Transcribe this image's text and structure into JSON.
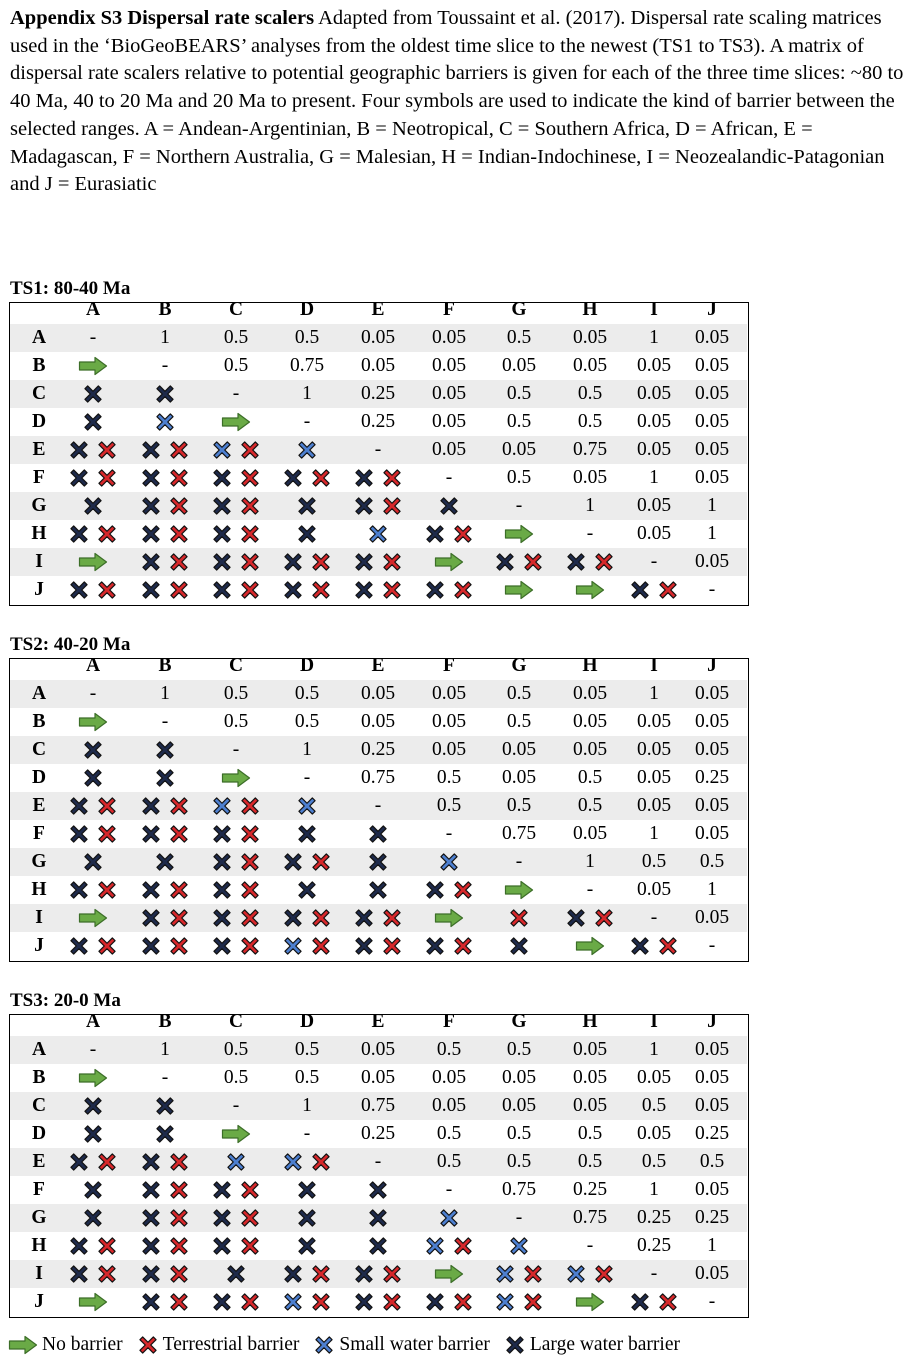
{
  "intro": {
    "bold": "Appendix S3 Dispersal rate scalers",
    "text": " Adapted from Toussaint et al. (2017). Dispersal rate scaling matrices used in the ‘BioGeoBEARS’ analyses from the oldest time slice to the newest (TS1 to TS3). A matrix of dispersal rate scalers relative to potential geographic barriers is given for each of the three time slices: ~80 to 40 Ma, 40 to 20 Ma and 20 Ma to present. Four symbols are used to indicate the kind of barrier between the selected ranges. A = Andean-Argentinian, B = Neotropical, C = Southern Africa, D = African, E = Madagascan, F = Northern Australia, G = Malesian, H = Indian-Indochinese, I = Neozealandic-Patagonian and J = Eurasiatic"
  },
  "labels": [
    "A",
    "B",
    "C",
    "D",
    "E",
    "F",
    "G",
    "H",
    "I",
    "J"
  ],
  "colors": {
    "no_barrier": "#6aaa46",
    "terrestrial": "#d6282b",
    "small_water": "#4d7fcf",
    "large_water": "#1e2a4a"
  },
  "matrices": [
    {
      "title": "TS1: 80-40 Ma",
      "rows": [
        [
          "-",
          "1",
          "0.5",
          "0.5",
          "0.05",
          "0.05",
          "0.5",
          "0.05",
          "1",
          "0.05"
        ],
        [
          "n",
          "-",
          "0.5",
          "0.75",
          "0.05",
          "0.05",
          "0.05",
          "0.05",
          "0.05",
          "0.05"
        ],
        [
          "l",
          "l",
          "-",
          "1",
          "0.25",
          "0.05",
          "0.5",
          "0.5",
          "0.05",
          "0.05"
        ],
        [
          "l",
          "s",
          "n",
          "-",
          "0.25",
          "0.05",
          "0.5",
          "0.5",
          "0.05",
          "0.05"
        ],
        [
          "lt",
          "lt",
          "st",
          "s",
          "-",
          "0.05",
          "0.05",
          "0.75",
          "0.05",
          "0.05"
        ],
        [
          "lt",
          "lt",
          "lt",
          "lt",
          "lt",
          "-",
          "0.5",
          "0.05",
          "1",
          "0.05"
        ],
        [
          "l",
          "lt",
          "lt",
          "l",
          "lt",
          "l",
          "-",
          "1",
          "0.05",
          "1"
        ],
        [
          "lt",
          "lt",
          "lt",
          "l",
          "s",
          "lt",
          "n",
          "-",
          "0.05",
          "1"
        ],
        [
          "n",
          "lt",
          "lt",
          "lt",
          "lt",
          "n",
          "lt",
          "lt",
          "-",
          "0.05"
        ],
        [
          "lt",
          "lt",
          "lt",
          "lt",
          "lt",
          "lt",
          "n",
          "n",
          "lt",
          "-"
        ]
      ]
    },
    {
      "title": "TS2: 40-20 Ma",
      "rows": [
        [
          "-",
          "1",
          "0.5",
          "0.5",
          "0.05",
          "0.05",
          "0.5",
          "0.05",
          "1",
          "0.05"
        ],
        [
          "n",
          "-",
          "0.5",
          "0.5",
          "0.05",
          "0.05",
          "0.5",
          "0.05",
          "0.05",
          "0.05"
        ],
        [
          "l",
          "l",
          "-",
          "1",
          "0.25",
          "0.05",
          "0.05",
          "0.05",
          "0.05",
          "0.05"
        ],
        [
          "l",
          "l",
          "n",
          "-",
          "0.75",
          "0.5",
          "0.05",
          "0.5",
          "0.05",
          "0.25"
        ],
        [
          "lt",
          "lt",
          "st",
          "s",
          "-",
          "0.5",
          "0.5",
          "0.5",
          "0.05",
          "0.05"
        ],
        [
          "lt",
          "lt",
          "lt",
          "l",
          "l",
          "-",
          "0.75",
          "0.05",
          "1",
          "0.05"
        ],
        [
          "l",
          "l",
          "lt",
          "lt",
          "l",
          "s",
          "-",
          "1",
          "0.5",
          "0.5"
        ],
        [
          "lt",
          "lt",
          "lt",
          "l",
          "l",
          "lt",
          "n",
          "-",
          "0.05",
          "1"
        ],
        [
          "n",
          "lt",
          "lt",
          "lt",
          "lt",
          "n",
          "t",
          "lt",
          "-",
          "0.05"
        ],
        [
          "lt",
          "lt",
          "lt",
          "st",
          "lt",
          "lt",
          "l",
          "n",
          "lt",
          "-"
        ]
      ]
    },
    {
      "title": "TS3: 20-0 Ma",
      "rows": [
        [
          "-",
          "1",
          "0.5",
          "0.5",
          "0.05",
          "0.5",
          "0.5",
          "0.05",
          "1",
          "0.05"
        ],
        [
          "n",
          "-",
          "0.5",
          "0.5",
          "0.05",
          "0.05",
          "0.05",
          "0.05",
          "0.05",
          "0.05"
        ],
        [
          "l",
          "l",
          "-",
          "1",
          "0.75",
          "0.05",
          "0.05",
          "0.05",
          "0.5",
          "0.05"
        ],
        [
          "l",
          "l",
          "n",
          "-",
          "0.25",
          "0.5",
          "0.5",
          "0.5",
          "0.05",
          "0.25"
        ],
        [
          "lt",
          "lt",
          "s",
          "st",
          "-",
          "0.5",
          "0.5",
          "0.5",
          "0.5",
          "0.5"
        ],
        [
          "l",
          "lt",
          "lt",
          "l",
          "l",
          "-",
          "0.75",
          "0.25",
          "1",
          "0.05"
        ],
        [
          "l",
          "lt",
          "lt",
          "l",
          "l",
          "s",
          "-",
          "0.75",
          "0.25",
          "0.25"
        ],
        [
          "lt",
          "lt",
          "lt",
          "l",
          "l",
          "st",
          "s",
          "-",
          "0.25",
          "1"
        ],
        [
          "lt",
          "lt",
          "l",
          "lt",
          "lt",
          "n",
          "st",
          "st",
          "-",
          "0.05"
        ],
        [
          "n",
          "lt",
          "lt",
          "st",
          "lt",
          "lt",
          "st",
          "n",
          "lt",
          "-"
        ]
      ]
    }
  ],
  "legend": [
    {
      "symbol": "n",
      "label": "No barrier"
    },
    {
      "symbol": "t",
      "label": "Terrestrial barrier"
    },
    {
      "symbol": "s",
      "label": "Small water barrier"
    },
    {
      "symbol": "l",
      "label": "Large water barrier"
    }
  ],
  "symbol_icons": {
    "n": "arrow-right-icon",
    "t": "terrestrial-x-icon",
    "s": "small-water-x-icon",
    "l": "large-water-x-icon"
  }
}
